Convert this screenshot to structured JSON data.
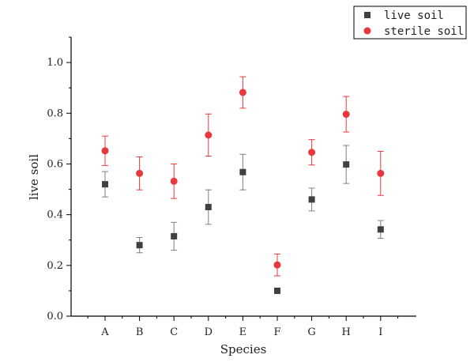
{
  "chart_data": {
    "type": "scatter",
    "categories": [
      "A",
      "B",
      "C",
      "D",
      "E",
      "F",
      "G",
      "H",
      "I"
    ],
    "xlabel": "Species",
    "ylabel": "live soil",
    "ylim": [
      0,
      1.1
    ],
    "yticks": [
      "0.0",
      "0.2",
      "0.4",
      "0.6",
      "0.8",
      "1.0"
    ],
    "legend_position": "top-right",
    "grid": false,
    "series": [
      {
        "name": "live soil",
        "marker": "square",
        "color": "#404040",
        "error_color": "#7f7f7f",
        "values": [
          0.52,
          0.28,
          0.315,
          0.43,
          0.568,
          0.1,
          0.46,
          0.598,
          0.342
        ],
        "errors": [
          0.05,
          0.03,
          0.055,
          0.068,
          0.07,
          0.005,
          0.045,
          0.075,
          0.035
        ]
      },
      {
        "name": "sterile soil",
        "marker": "circle",
        "color": "#e8383d",
        "error_color": "#e8383d",
        "values": [
          0.652,
          0.563,
          0.532,
          0.714,
          0.882,
          0.202,
          0.646,
          0.796,
          0.563
        ],
        "errors": [
          0.058,
          0.065,
          0.068,
          0.083,
          0.062,
          0.043,
          0.05,
          0.07,
          0.087
        ]
      }
    ]
  }
}
